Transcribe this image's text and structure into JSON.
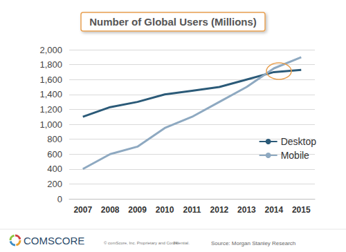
{
  "chart_data": {
    "type": "line",
    "title": "Number of Global Users (Millions)",
    "categories": [
      "2007",
      "2008",
      "2009",
      "2010",
      "2011",
      "2012",
      "2013",
      "2014",
      "2015"
    ],
    "series": [
      {
        "name": "Desktop",
        "color": "#2b5a78",
        "values": [
          1100,
          1230,
          1300,
          1400,
          1450,
          1500,
          1600,
          1700,
          1730
        ]
      },
      {
        "name": "Mobile",
        "color": "#8ea9c1",
        "values": [
          400,
          600,
          700,
          950,
          1100,
          1300,
          1500,
          1750,
          1900
        ]
      }
    ],
    "ylim": [
      0,
      2000
    ],
    "yticks": [
      0,
      200,
      400,
      600,
      800,
      {
        "value": 1000,
        "label": "1,000"
      },
      {
        "value": 1200,
        "label": "1,200"
      },
      {
        "value": 1400,
        "label": "1,400"
      },
      {
        "value": 1600,
        "label": "1,600"
      },
      {
        "value": 1800,
        "label": "1,800"
      },
      {
        "value": 2000,
        "label": "2,000"
      }
    ],
    "grid": true,
    "legend": "right",
    "annotations": [
      "COMSCORE",
      "© comScore, Inc. Proprietary and Confidential.",
      "24",
      "Source: Morgan Stanley Research"
    ]
  }
}
